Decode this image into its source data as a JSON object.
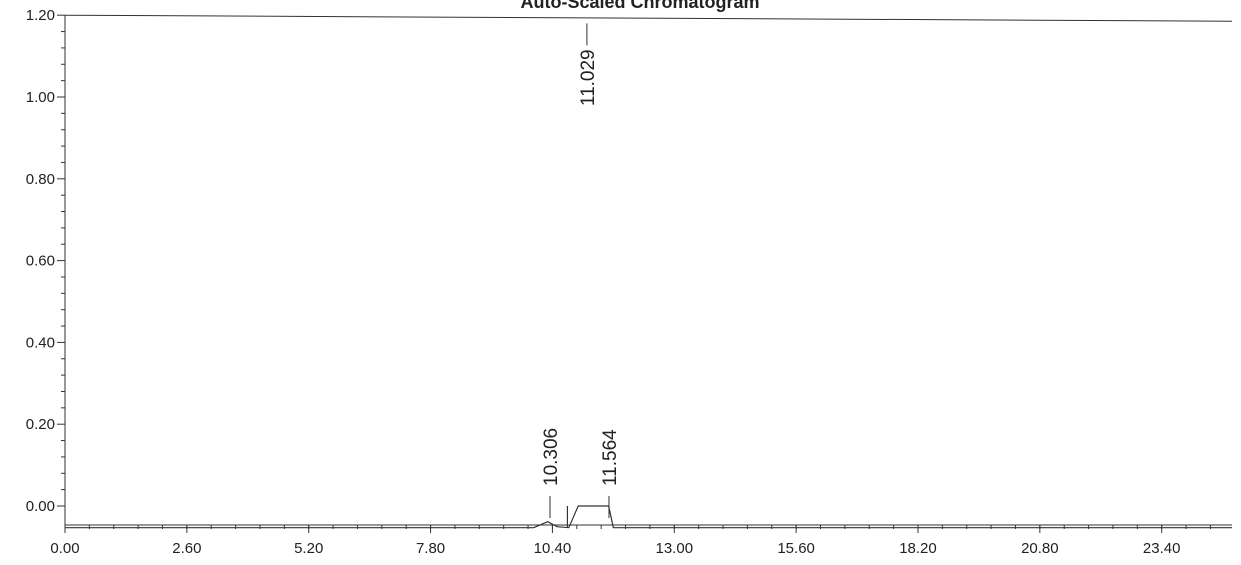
{
  "chart_data": {
    "type": "line",
    "title": "Auto-Scaled Chromatogram",
    "xlabel": "",
    "ylabel": "",
    "xlim": [
      0.0,
      24.9
    ],
    "ylim": [
      -0.06,
      1.2
    ],
    "x_ticks": [
      "0.00",
      "2.60",
      "5.20",
      "7.80",
      "10.40",
      "13.00",
      "15.60",
      "18.20",
      "20.80",
      "23.40"
    ],
    "x_tick_values": [
      0.0,
      2.6,
      5.2,
      7.8,
      10.4,
      13.0,
      15.6,
      18.2,
      20.8,
      23.4
    ],
    "y_ticks": [
      "0.00",
      "0.20",
      "0.40",
      "0.60",
      "0.80",
      "1.00",
      "1.20"
    ],
    "y_tick_values": [
      0.0,
      0.2,
      0.4,
      0.6,
      0.8,
      1.0,
      1.2
    ],
    "grid": false,
    "peaks": [
      {
        "label": "10.306",
        "x": 10.306,
        "height": 0.0
      },
      {
        "label": "11.029",
        "x": 11.029,
        "height": 1.18
      },
      {
        "label": "11.564",
        "x": 11.564,
        "height": 0.0
      }
    ],
    "baseline_y": -0.053
  }
}
